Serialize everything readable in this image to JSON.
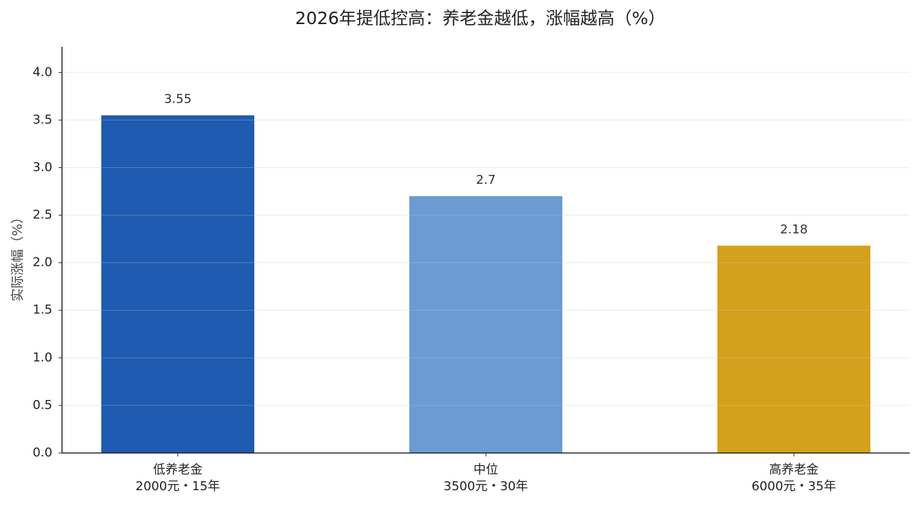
{
  "chart_data": {
    "type": "bar",
    "title": "2026年提低控高：养老金越低，涨幅越高（%）",
    "y_label": "实际涨幅（%）",
    "categories": [
      [
        "低养老金",
        "2000元・15年"
      ],
      [
        "中位",
        "3500元・30年"
      ],
      [
        "高养老金",
        "6000元・35年"
      ]
    ],
    "values": [
      3.55,
      2.7,
      2.18
    ],
    "colors": [
      "#1f5bb0",
      "#6b9bd2",
      "#d4a11c"
    ],
    "ylim": [
      0,
      4.27
    ],
    "yticks": [
      {
        "value": 0,
        "label": "0.0"
      },
      0.5,
      {
        "value": 1,
        "label": "1.0"
      },
      1.5,
      {
        "value": 2,
        "label": "2.0"
      },
      2.5,
      {
        "value": 3,
        "label": "3.0"
      },
      3.5,
      {
        "value": 4,
        "label": "4.0"
      }
    ],
    "grid": true
  }
}
